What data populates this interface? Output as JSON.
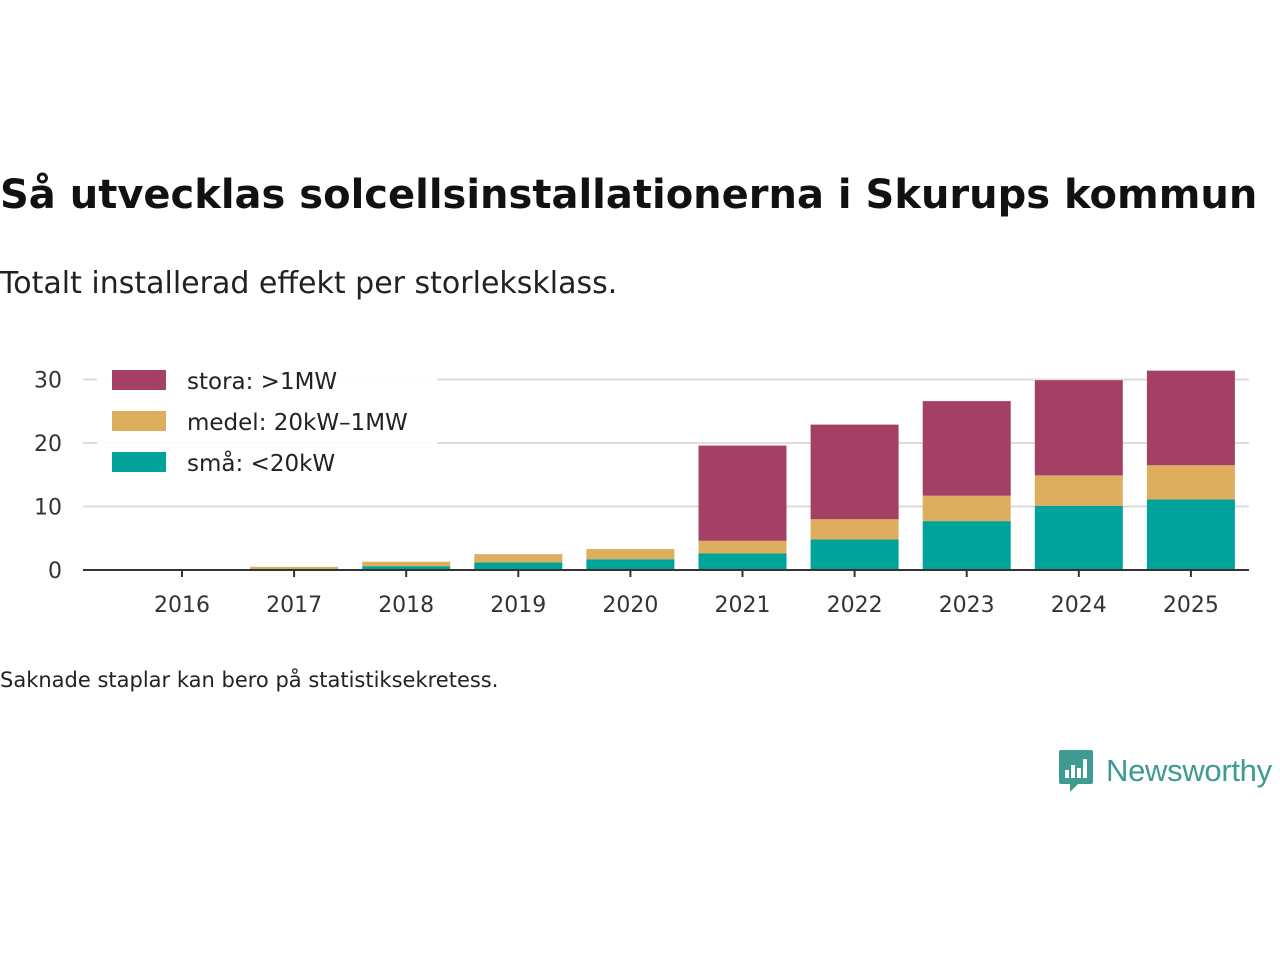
{
  "title": "Så utvecklas solcellsinstallationerna i Skurups kommun",
  "subtitle": "Totalt installerad effekt per storleksklass.",
  "footnote": "Saknade staplar kan bero på statistiksekretess.",
  "brand": {
    "name": "Newsworthy",
    "color": "#3d9b92",
    "icon": "newsworthy-logo-icon"
  },
  "chart_data": {
    "type": "bar",
    "stacked": true,
    "categories": [
      "2016",
      "2017",
      "2018",
      "2019",
      "2020",
      "2021",
      "2022",
      "2023",
      "2024",
      "2025"
    ],
    "series": [
      {
        "name": "små: <20kW",
        "color": "#00a39a",
        "values": [
          0.1,
          0.2,
          0.6,
          1.2,
          1.7,
          2.6,
          4.8,
          7.7,
          10.1,
          11.1
        ]
      },
      {
        "name": "medel: 20kW–1MW",
        "color": "#dcae5e",
        "values": [
          0.0,
          0.3,
          0.7,
          1.3,
          1.6,
          2.0,
          3.2,
          4.0,
          4.8,
          5.4
        ]
      },
      {
        "name": "stora: >1MW",
        "color": "#a44066",
        "values": [
          0,
          0,
          0,
          0,
          0,
          15.0,
          14.9,
          14.9,
          15.0,
          14.9
        ]
      }
    ],
    "legend_order": [
      "stora: >1MW",
      "medel: 20kW–1MW",
      "små: <20kW"
    ],
    "legend_position": "top-left",
    "yticks": [
      0,
      10,
      20,
      30
    ],
    "ylim": [
      0,
      31.5
    ],
    "grid": true,
    "xlabel": "",
    "ylabel": ""
  }
}
